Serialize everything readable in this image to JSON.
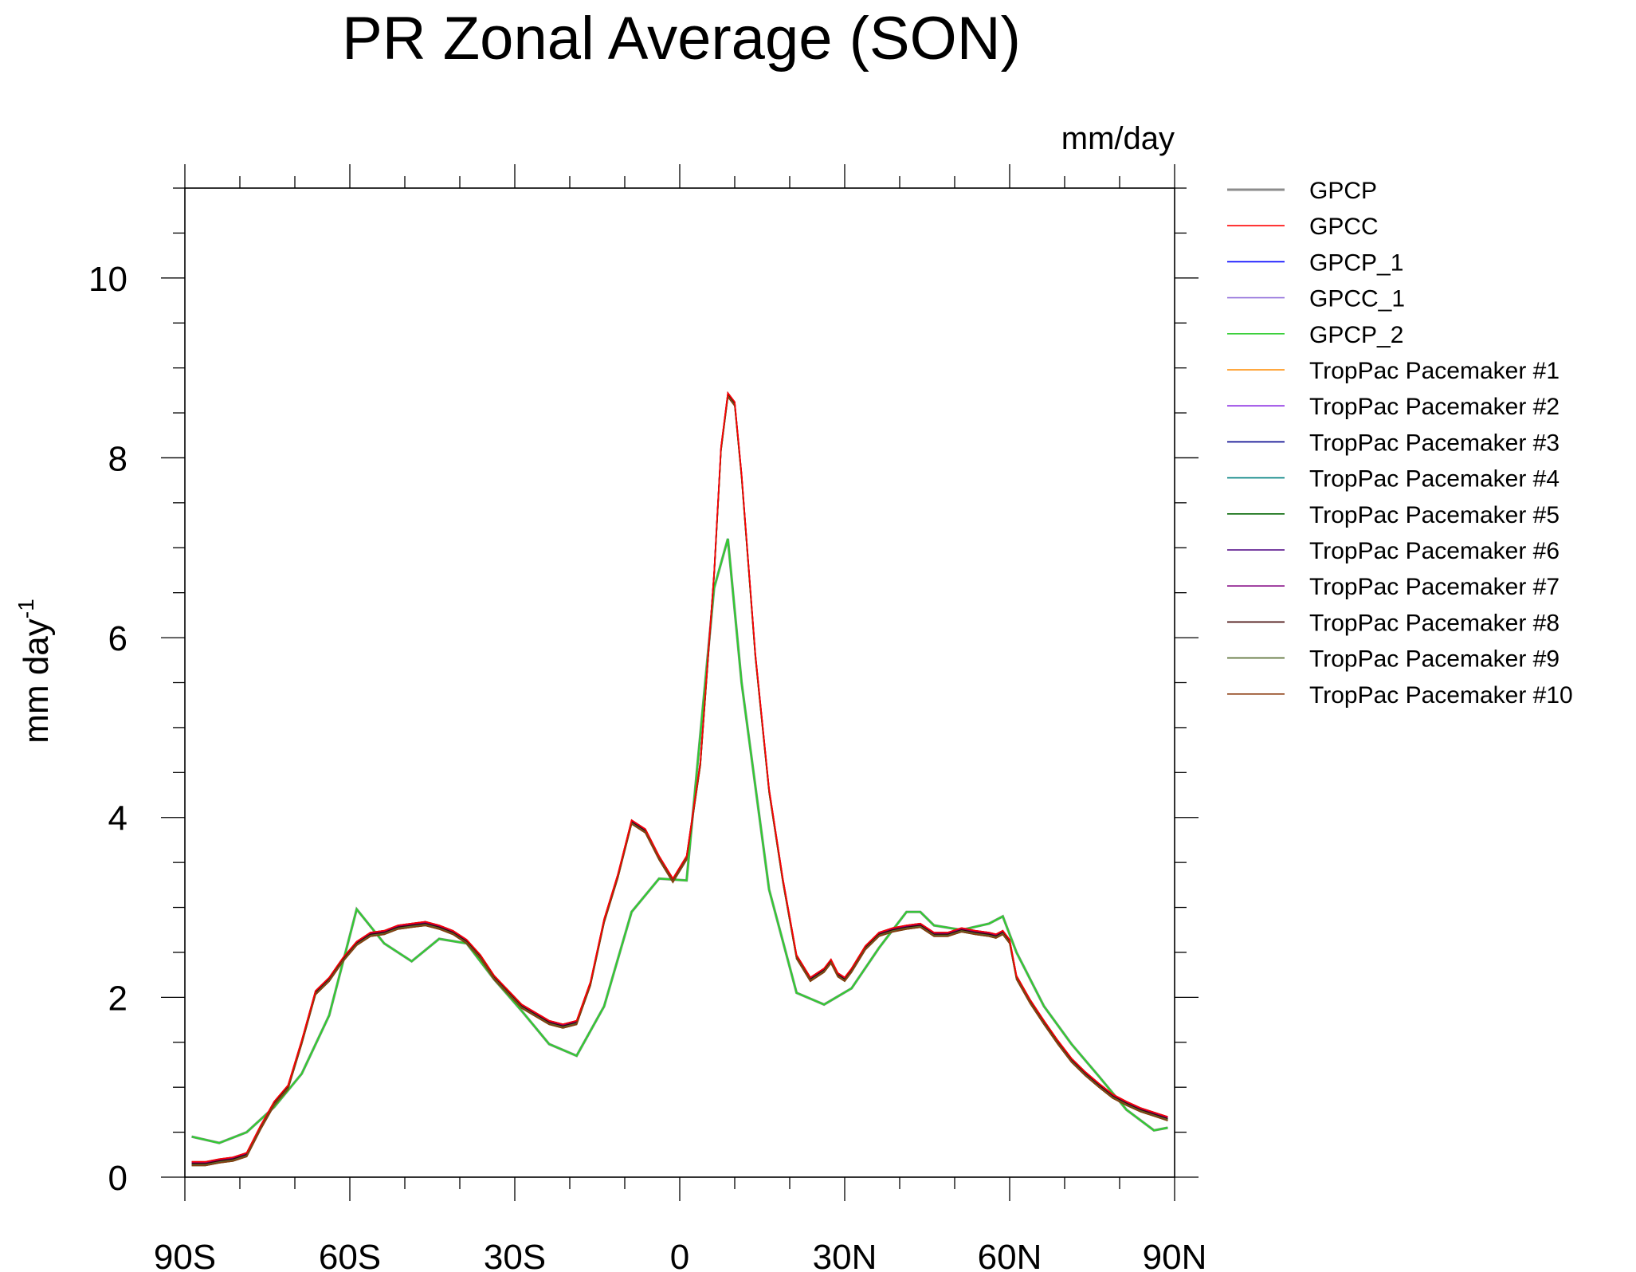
{
  "chart_data": {
    "type": "line",
    "title": "PR Zonal Average (SON)",
    "units_label": "mm/day",
    "ylabel": "mm day",
    "ylabel_exponent": "-1",
    "xlim": [
      -90,
      90
    ],
    "ylim": [
      0,
      11
    ],
    "xticks": [
      {
        "value": -90,
        "label": "90S"
      },
      {
        "value": -60,
        "label": "60S"
      },
      {
        "value": -30,
        "label": "30S"
      },
      {
        "value": 0,
        "label": "0"
      },
      {
        "value": 30,
        "label": "30N"
      },
      {
        "value": 60,
        "label": "60N"
      },
      {
        "value": 90,
        "label": "90N"
      }
    ],
    "yticks": [
      {
        "value": 0,
        "label": "0"
      },
      {
        "value": 2,
        "label": "2"
      },
      {
        "value": 4,
        "label": "4"
      },
      {
        "value": 6,
        "label": "6"
      },
      {
        "value": 8,
        "label": "8"
      },
      {
        "value": 10,
        "label": "10"
      }
    ],
    "legend_position": "right",
    "grid": false,
    "series": [
      {
        "name": "GPCP",
        "color": "#8c8c8c",
        "style": "obs",
        "x": [
          -88.75,
          -83.75,
          -78.75,
          -73.75,
          -68.75,
          -63.75,
          -58.75,
          -53.75,
          -48.75,
          -43.75,
          -38.75,
          -33.75,
          -28.75,
          -23.75,
          -18.75,
          -13.75,
          -8.75,
          -3.75,
          1.25,
          6.25,
          8.75,
          11.25,
          16.25,
          21.25,
          26.25,
          31.25,
          36.25,
          41.25,
          43.75,
          46.25,
          51.25,
          56.25,
          58.75,
          61.25,
          66.25,
          71.25,
          76.25,
          81.25,
          86.25,
          88.75
        ],
        "y": [
          0.45,
          0.38,
          0.5,
          0.78,
          1.15,
          1.8,
          2.98,
          2.6,
          2.4,
          2.65,
          2.6,
          2.2,
          1.85,
          1.48,
          1.35,
          1.9,
          2.95,
          3.32,
          3.3,
          6.55,
          7.1,
          5.5,
          3.2,
          2.05,
          1.92,
          2.1,
          2.55,
          2.95,
          2.95,
          2.8,
          2.75,
          2.82,
          2.9,
          2.5,
          1.9,
          1.48,
          1.12,
          0.75,
          0.52,
          0.55
        ]
      },
      {
        "name": "GPCC",
        "color": "#ff0000",
        "style": "model",
        "x": [
          -88.75,
          -86.25,
          -83.75,
          -81.25,
          -78.75,
          -76.25,
          -73.75,
          -71.25,
          -68.75,
          -66.25,
          -63.75,
          -61.25,
          -58.75,
          -56.25,
          -53.75,
          -51.25,
          -48.75,
          -46.25,
          -43.75,
          -41.25,
          -38.75,
          -36.25,
          -33.75,
          -28.75,
          -23.75,
          -21.25,
          -18.75,
          -16.25,
          -13.75,
          -11.25,
          -8.75,
          -6.25,
          -3.75,
          -1.25,
          1.25,
          3.75,
          6.25,
          7.5,
          8.75,
          10,
          11.25,
          13.75,
          16.25,
          18.75,
          21.25,
          23.75,
          26.25,
          27.5,
          28.75,
          30,
          31.25,
          33.75,
          36.25,
          38.75,
          41.25,
          43.75,
          46.25,
          48.75,
          51.25,
          53.75,
          56.25,
          57.5,
          58.75,
          60,
          61.25,
          63.75,
          66.25,
          68.75,
          71.25,
          73.75,
          76.25,
          78.75,
          81.25,
          83.75,
          86.25,
          88.75
        ],
        "y": [
          0.15,
          0.15,
          0.18,
          0.2,
          0.25,
          0.55,
          0.82,
          1.0,
          1.5,
          2.05,
          2.2,
          2.42,
          2.6,
          2.7,
          2.72,
          2.78,
          2.8,
          2.82,
          2.78,
          2.72,
          2.62,
          2.45,
          2.22,
          1.9,
          1.72,
          1.68,
          1.72,
          2.15,
          2.85,
          3.35,
          3.95,
          3.85,
          3.55,
          3.3,
          3.55,
          4.6,
          6.7,
          8.1,
          8.7,
          8.6,
          7.8,
          5.8,
          4.3,
          3.3,
          2.45,
          2.2,
          2.3,
          2.4,
          2.25,
          2.2,
          2.3,
          2.55,
          2.7,
          2.75,
          2.78,
          2.8,
          2.7,
          2.7,
          2.75,
          2.72,
          2.7,
          2.68,
          2.72,
          2.62,
          2.22,
          1.95,
          1.72,
          1.5,
          1.3,
          1.15,
          1.02,
          0.9,
          0.82,
          0.75,
          0.7,
          0.65
        ]
      }
    ]
  },
  "legend": [
    {
      "name": "GPCP",
      "color": "#8c8c8c",
      "width": 3
    },
    {
      "name": "GPCC",
      "color": "#ff0000",
      "width": 1.6
    },
    {
      "name": "GPCP_1",
      "color": "#0000ff",
      "width": 1.6
    },
    {
      "name": "GPCC_1",
      "color": "#9370db",
      "width": 1.6
    },
    {
      "name": "GPCP_2",
      "color": "#32cd32",
      "width": 1.6
    },
    {
      "name": "TropPac Pacemaker #1",
      "color": "#ff8c00",
      "width": 1.6
    },
    {
      "name": "TropPac Pacemaker #2",
      "color": "#8a2be2",
      "width": 1.6
    },
    {
      "name": "TropPac Pacemaker #3",
      "color": "#00008b",
      "width": 1.6
    },
    {
      "name": "TropPac Pacemaker #4",
      "color": "#008080",
      "width": 1.6
    },
    {
      "name": "TropPac Pacemaker #5",
      "color": "#006400",
      "width": 1.6
    },
    {
      "name": "TropPac Pacemaker #6",
      "color": "#4b0082",
      "width": 1.6
    },
    {
      "name": "TropPac Pacemaker #7",
      "color": "#800080",
      "width": 1.6
    },
    {
      "name": "TropPac Pacemaker #8",
      "color": "#3d0000",
      "width": 1.6
    },
    {
      "name": "TropPac Pacemaker #9",
      "color": "#556b2f",
      "width": 1.6
    },
    {
      "name": "TropPac Pacemaker #10",
      "color": "#8b3a0f",
      "width": 1.6
    }
  ]
}
